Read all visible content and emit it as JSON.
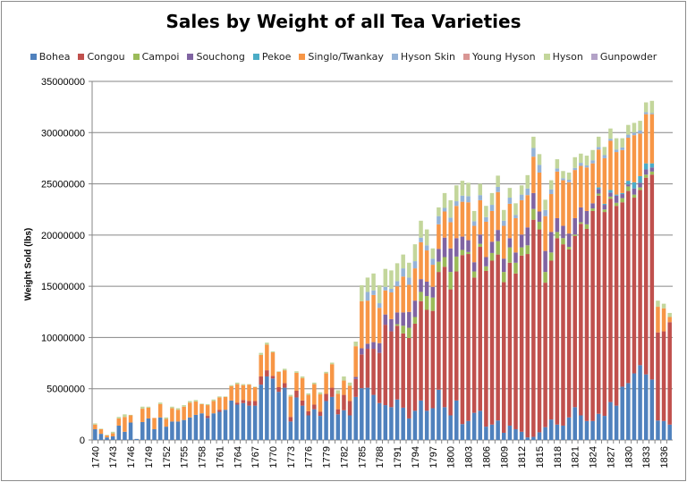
{
  "chart_data": {
    "type": "bar",
    "stacked": true,
    "title": "Sales by Weight of all Tea Varieties",
    "xlabel": "",
    "ylabel": "Weight Sold (lbs)",
    "ylim": [
      0,
      35000000
    ],
    "yticks": [
      "0",
      "5000000",
      "10000000",
      "15000000",
      "20000000",
      "25000000",
      "30000000",
      "35000000"
    ],
    "ytick_values": [
      0,
      5000000,
      10000000,
      15000000,
      20000000,
      25000000,
      30000000,
      35000000
    ],
    "grid": true,
    "legend_position": "top",
    "unit_scale": 1000000,
    "x_start": 1740,
    "x_end": 1837,
    "x_tick_every": 3,
    "series": [
      {
        "name": "Bohea",
        "color": "#4F81BD",
        "values": [
          1.05,
          0.6,
          0.25,
          0.35,
          1.4,
          0.8,
          1.7,
          0.1,
          1.75,
          2.1,
          1.05,
          2.2,
          1.3,
          1.8,
          1.8,
          1.95,
          2.2,
          2.45,
          2.6,
          2.15,
          2.6,
          2.75,
          2.95,
          3.85,
          3.45,
          3.6,
          3.35,
          3.35,
          5.4,
          6.2,
          6.0,
          4.7,
          5.1,
          1.8,
          4.15,
          3.35,
          2.4,
          3.0,
          2.35,
          3.8,
          4.2,
          2.5,
          2.9,
          2.4,
          4.2,
          5.05,
          5.1,
          4.4,
          3.6,
          3.4,
          3.2,
          3.95,
          3.15,
          2.1,
          2.85,
          3.85,
          2.85,
          3.1,
          4.9,
          3.2,
          2.4,
          3.85,
          1.55,
          1.85,
          2.65,
          2.85,
          1.3,
          1.5,
          1.9,
          0.7,
          1.4,
          1.05,
          0.8,
          0.25,
          0.3,
          0.75,
          1.25,
          2.0,
          1.5,
          1.4,
          2.2,
          3.2,
          2.4,
          1.85,
          1.85,
          2.55,
          2.35,
          3.7,
          3.35,
          5.2,
          5.55,
          6.5,
          7.3,
          6.4,
          5.9,
          1.9,
          1.85,
          1.5
        ]
      },
      {
        "name": "Congou",
        "color": "#C0504D",
        "values": [
          0,
          0,
          0,
          0,
          0,
          0,
          0,
          0,
          0,
          0,
          0,
          0,
          0,
          0,
          0,
          0,
          0,
          0,
          0,
          0.2,
          0,
          0.2,
          0,
          0,
          0.2,
          0.3,
          0.45,
          0.45,
          0.8,
          0.6,
          0.25,
          0.45,
          0.45,
          0.45,
          0.65,
          0.5,
          0.4,
          0.45,
          0.4,
          0.7,
          0.9,
          0.5,
          1.5,
          1.4,
          1.75,
          3.3,
          3.8,
          4.5,
          4.9,
          7.85,
          7.4,
          7.2,
          7.25,
          7.85,
          8.5,
          9.7,
          9.85,
          9.5,
          11.5,
          13.7,
          12.3,
          12.6,
          16.5,
          16.3,
          13.2,
          16.0,
          15.2,
          16.0,
          16.2,
          14.7,
          15.9,
          15.2,
          17.2,
          17.9,
          21.2,
          19.8,
          14.1,
          15.5,
          18.2,
          17.7,
          16.4,
          16.7,
          18.7,
          18.75,
          20.5,
          21.3,
          19.9,
          19.85,
          19.5,
          18.0,
          18.75,
          17.15,
          17.1,
          19.2,
          20.0,
          8.6,
          8.75,
          10.0
        ]
      },
      {
        "name": "Campoi",
        "color": "#9BBB59",
        "values": [
          0,
          0,
          0,
          0,
          0,
          0,
          0,
          0,
          0,
          0,
          0,
          0,
          0,
          0,
          0,
          0,
          0,
          0,
          0,
          0,
          0,
          0,
          0,
          0,
          0,
          0,
          0,
          0,
          0,
          0,
          0,
          0,
          0,
          0,
          0,
          0,
          0,
          0,
          0,
          0,
          0,
          0,
          0,
          0,
          0,
          0,
          0,
          0,
          0,
          0,
          0,
          0.15,
          0.75,
          1.0,
          0.65,
          0.9,
          1.35,
          1.3,
          1.0,
          0.95,
          1.7,
          1.45,
          0.5,
          0.2,
          0.6,
          0.3,
          0.45,
          0.75,
          1.3,
          1.0,
          1.5,
          1.05,
          0.8,
          0.85,
          1.05,
          0.75,
          1.05,
          0.8,
          0.6,
          0.6,
          0.25,
          0.15,
          0.15,
          0.45,
          0.25,
          0.2,
          0.25,
          0.2,
          0.3,
          0.4,
          0.45,
          0.3,
          0.25,
          0.3,
          0.3,
          0,
          0,
          0
        ]
      },
      {
        "name": "Souchong",
        "color": "#8064A2",
        "values": [
          0,
          0,
          0,
          0,
          0,
          0,
          0,
          0,
          0,
          0,
          0,
          0,
          0,
          0,
          0,
          0,
          0,
          0,
          0,
          0,
          0,
          0,
          0,
          0,
          0,
          0,
          0,
          0,
          0,
          0,
          0,
          0,
          0,
          0,
          0,
          0,
          0,
          0,
          0,
          0,
          0,
          0,
          0,
          0,
          0.2,
          0.6,
          0.5,
          0.65,
          0.95,
          1.0,
          1.2,
          1.15,
          1.3,
          1.55,
          1.6,
          1.25,
          1.4,
          1.05,
          1.25,
          1.9,
          2.3,
          1.8,
          1.3,
          1.15,
          0.9,
          0.9,
          0.9,
          1.1,
          1.1,
          1.3,
          0.9,
          1.0,
          1.25,
          1.75,
          1.55,
          1.0,
          2.05,
          2.0,
          1.35,
          1.2,
          1.3,
          1.6,
          1.45,
          1.3,
          0.5,
          0.45,
          0.45,
          0.4,
          0.7,
          0.4,
          0.2,
          0.6,
          0.45,
          0.5,
          0.4,
          0,
          0,
          0
        ]
      },
      {
        "name": "Pekoe",
        "color": "#4BACC6",
        "values": [
          0,
          0,
          0,
          0,
          0,
          0,
          0,
          0,
          0,
          0,
          0,
          0,
          0,
          0,
          0,
          0,
          0,
          0,
          0,
          0,
          0,
          0,
          0,
          0,
          0,
          0,
          0,
          0,
          0,
          0,
          0,
          0,
          0,
          0,
          0,
          0,
          0,
          0,
          0,
          0,
          0,
          0,
          0,
          0,
          0,
          0,
          0,
          0,
          0,
          0,
          0,
          0,
          0,
          0,
          0,
          0,
          0,
          0,
          0,
          0,
          0,
          0,
          0,
          0,
          0,
          0,
          0,
          0,
          0,
          0,
          0,
          0,
          0,
          0,
          0,
          0,
          0,
          0,
          0,
          0,
          0,
          0,
          0,
          0,
          0,
          0.15,
          0.1,
          0.25,
          0.1,
          0.1,
          0.35,
          0.6,
          0.65,
          0.6,
          0.4,
          0,
          0,
          0
        ]
      },
      {
        "name": "Singlo/Twankay",
        "color": "#F79646",
        "values": [
          0.45,
          0.45,
          0.2,
          0.3,
          0.7,
          1.45,
          0.7,
          0,
          1.3,
          1.05,
          1.1,
          1.3,
          0.75,
          1.3,
          1.15,
          1.3,
          1.45,
          1.3,
          0.9,
          1.05,
          1.2,
          1.2,
          1.25,
          1.4,
          1.8,
          1.45,
          1.6,
          1.35,
          2.1,
          2.5,
          2.3,
          1.5,
          1.25,
          2.0,
          1.75,
          2.2,
          1.6,
          2.0,
          1.7,
          2.0,
          2.3,
          1.5,
          1.4,
          1.5,
          3.0,
          4.6,
          4.2,
          4.6,
          3.45,
          2.35,
          2.6,
          2.55,
          3.5,
          2.65,
          3.15,
          3.6,
          3.05,
          2.15,
          2.4,
          2.55,
          2.55,
          3.15,
          3.4,
          3.7,
          3.55,
          3.35,
          3.45,
          3.0,
          3.7,
          3.2,
          3.35,
          3.35,
          3.35,
          3.15,
          3.55,
          3.8,
          3.4,
          3.7,
          4.55,
          4.45,
          5.0,
          4.7,
          4.05,
          4.25,
          3.9,
          3.7,
          4.45,
          4.8,
          4.15,
          4.2,
          4.2,
          4.6,
          4.15,
          4.8,
          4.8,
          2.5,
          2.25,
          0.5
        ]
      },
      {
        "name": "Hyson Skin",
        "color": "#95B3D7",
        "values": [
          0,
          0,
          0,
          0,
          0,
          0,
          0,
          0,
          0,
          0,
          0,
          0,
          0,
          0,
          0,
          0,
          0,
          0,
          0,
          0,
          0,
          0,
          0,
          0,
          0,
          0,
          0,
          0,
          0,
          0,
          0,
          0,
          0,
          0,
          0,
          0,
          0,
          0,
          0,
          0,
          0,
          0,
          0,
          0,
          0,
          0,
          0.85,
          0.45,
          0.45,
          0.35,
          0.35,
          0.5,
          0.8,
          0.7,
          0.7,
          0.45,
          0.5,
          0.6,
          0.8,
          0.35,
          0.45,
          0.45,
          0.6,
          0.6,
          0.45,
          0.5,
          0.45,
          0.6,
          0.5,
          0.5,
          0.6,
          0.3,
          0.55,
          0.65,
          0.85,
          0.75,
          0.6,
          0.45,
          0.3,
          0.2,
          0.25,
          0.2,
          0.3,
          0.2,
          0.3,
          0.25,
          0.3,
          0.2,
          0.25,
          0.25,
          0.3,
          0.25,
          0.3,
          0.2,
          0.1,
          0,
          0,
          0
        ]
      },
      {
        "name": "Young Hyson",
        "color": "#D99694",
        "values": [
          0,
          0,
          0,
          0,
          0,
          0,
          0,
          0,
          0,
          0,
          0,
          0,
          0,
          0,
          0,
          0,
          0,
          0,
          0,
          0,
          0,
          0,
          0,
          0,
          0,
          0,
          0,
          0,
          0,
          0,
          0,
          0,
          0,
          0,
          0,
          0,
          0,
          0,
          0,
          0,
          0,
          0,
          0,
          0,
          0,
          0,
          0,
          0,
          0,
          0,
          0,
          0,
          0,
          0,
          0,
          0,
          0,
          0,
          0,
          0,
          0,
          0,
          0,
          0,
          0,
          0,
          0,
          0,
          0,
          0,
          0,
          0,
          0,
          0,
          0,
          0,
          0,
          0,
          0,
          0,
          0,
          0,
          0,
          0,
          0,
          0,
          0,
          0,
          0,
          0,
          0,
          0,
          0,
          0,
          0,
          0,
          0,
          0
        ]
      },
      {
        "name": "Hyson",
        "color": "#C3D69B",
        "values": [
          0.12,
          0.05,
          0.05,
          0.15,
          0.15,
          0.25,
          0.05,
          0,
          0.2,
          0.1,
          0,
          0.15,
          0.15,
          0.15,
          0.15,
          0.15,
          0.15,
          0.15,
          0.05,
          0.1,
          0.15,
          0.1,
          0.05,
          0.1,
          0.15,
          0.1,
          0.05,
          0.05,
          0.2,
          0.2,
          0.1,
          0.05,
          0.15,
          0.15,
          0.15,
          0.15,
          0.15,
          0.15,
          0.2,
          0.15,
          0.15,
          0.35,
          0.4,
          0.3,
          0.45,
          1.55,
          1.4,
          1.65,
          1.75,
          1.75,
          1.8,
          1.75,
          1.35,
          1.45,
          1.65,
          1.65,
          1.55,
          1.0,
          0.85,
          1.45,
          1.7,
          1.55,
          1.45,
          1.3,
          1.0,
          1.1,
          1.1,
          1.15,
          1.1,
          1.05,
          0.95,
          1.15,
          0.9,
          1.3,
          1.1,
          1.05,
          1.0,
          0.9,
          0.9,
          0.7,
          0.7,
          1.05,
          0.9,
          0.95,
          1.0,
          1.0,
          0.8,
          1.0,
          1.1,
          0.9,
          0.95,
          0.95,
          0.95,
          0.95,
          1.2,
          0.6,
          0.45,
          0.4
        ]
      },
      {
        "name": "Gunpowder",
        "color": "#B3A2C7",
        "values": [
          0,
          0,
          0,
          0,
          0,
          0,
          0,
          0,
          0,
          0,
          0,
          0,
          0,
          0,
          0,
          0,
          0,
          0,
          0,
          0,
          0,
          0,
          0,
          0,
          0,
          0,
          0,
          0,
          0,
          0,
          0,
          0,
          0,
          0,
          0,
          0,
          0,
          0,
          0,
          0,
          0,
          0,
          0,
          0,
          0,
          0,
          0,
          0,
          0,
          0,
          0,
          0,
          0,
          0,
          0,
          0,
          0,
          0,
          0,
          0,
          0,
          0,
          0,
          0,
          0,
          0,
          0,
          0,
          0,
          0,
          0,
          0,
          0,
          0,
          0,
          0,
          0,
          0,
          0,
          0,
          0,
          0,
          0,
          0,
          0,
          0,
          0,
          0,
          0,
          0,
          0,
          0,
          0,
          0,
          0,
          0,
          0,
          0
        ]
      }
    ]
  }
}
